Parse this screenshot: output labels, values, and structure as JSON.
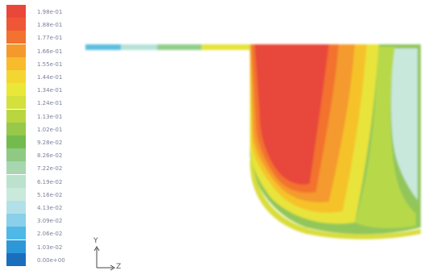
{
  "legend": {
    "colors": [
      "#e8473a",
      "#ef5636",
      "#f2722f",
      "#f49a2d",
      "#f7bb2b",
      "#f3d632",
      "#e9e838",
      "#d4e03c",
      "#b9d641",
      "#97c84a",
      "#74bb4e",
      "#8fc982",
      "#a7d6b1",
      "#bce2cd",
      "#c9e9dd",
      "#b3e0e8",
      "#8ad0ea",
      "#50b8e6",
      "#2d98d8",
      "#1a6fbd"
    ],
    "labels": [
      "1.98e-01",
      "1.88e-01",
      "1.77e-01",
      "1.66e-01",
      "1.55e-01",
      "1.44e-01",
      "1.34e-01",
      "1.24e-01",
      "1.13e-01",
      "1.02e-01",
      "9.28e-02",
      "8.26e-02",
      "7.22e-02",
      "6.19e-02",
      "5.16e-02",
      "4.13e-02",
      "3.09e-02",
      "2.06e-02",
      "1.03e-02",
      "0.00e+00"
    ]
  },
  "axes": {
    "vertical_label": "Y",
    "horizontal_label": "Z"
  }
}
